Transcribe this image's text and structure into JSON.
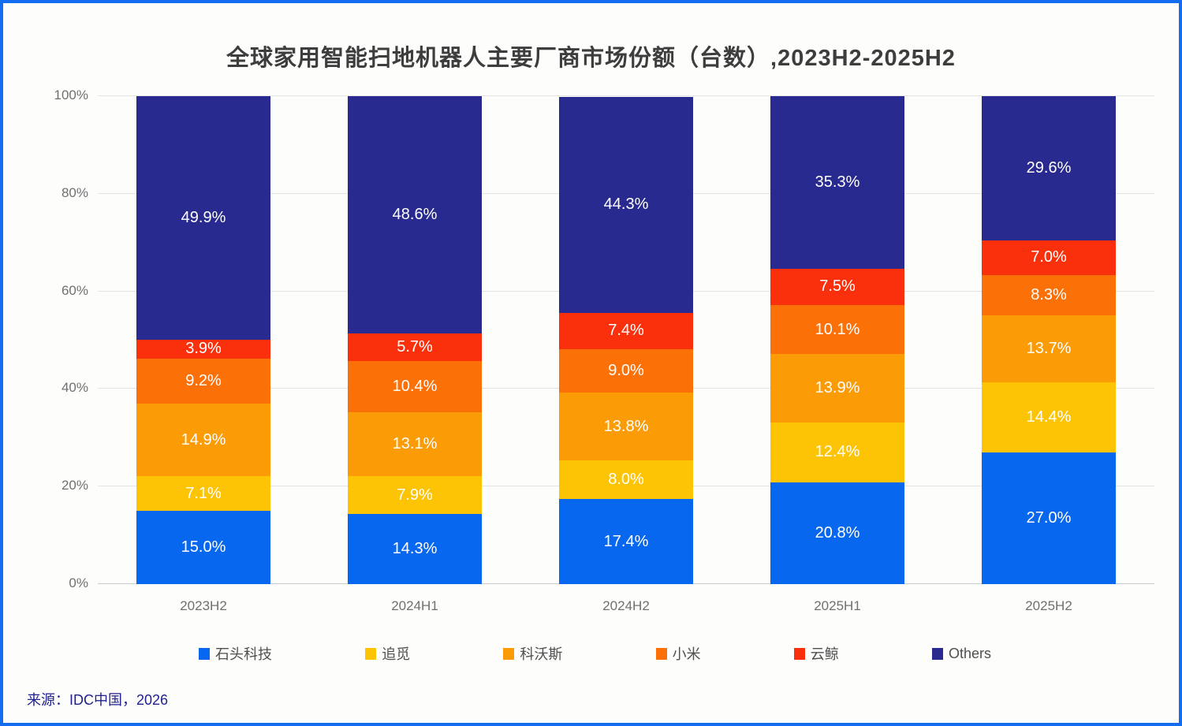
{
  "chart_data": {
    "type": "bar",
    "stacked": true,
    "title": "全球家用智能扫地机器人主要厂商市场份额（台数）,2023H2-2025H2",
    "categories": [
      "2023H2",
      "2024H1",
      "2024H2",
      "2025H1",
      "2025H2"
    ],
    "series": [
      {
        "name": "石头科技",
        "color": "#0768ef",
        "values": [
          15.0,
          14.3,
          17.4,
          20.8,
          27.0
        ]
      },
      {
        "name": "追觅",
        "color": "#fcc405",
        "values": [
          7.1,
          7.9,
          8.0,
          12.4,
          14.4
        ]
      },
      {
        "name": "科沃斯",
        "color": "#fb9b06",
        "values": [
          14.9,
          13.1,
          13.8,
          13.9,
          13.7
        ]
      },
      {
        "name": "小米",
        "color": "#fb7007",
        "values": [
          9.2,
          10.4,
          9.0,
          10.1,
          8.3
        ]
      },
      {
        "name": "云鲸",
        "color": "#f9300b",
        "values": [
          3.9,
          5.7,
          7.4,
          7.5,
          7.0
        ]
      },
      {
        "name": "Others",
        "color": "#282a90",
        "values": [
          49.9,
          48.6,
          44.3,
          35.3,
          29.6
        ]
      }
    ],
    "value_suffix": "%",
    "value_decimals": 1,
    "y_ticks": [
      "0%",
      "20%",
      "40%",
      "60%",
      "80%",
      "100%"
    ],
    "ylim": [
      0,
      100
    ],
    "grid": true,
    "legend_position": "bottom"
  },
  "source": {
    "label": "来源：IDC中国，2026"
  },
  "frame": {
    "border_color": "#146cf1",
    "background": "#fdfdfc"
  }
}
